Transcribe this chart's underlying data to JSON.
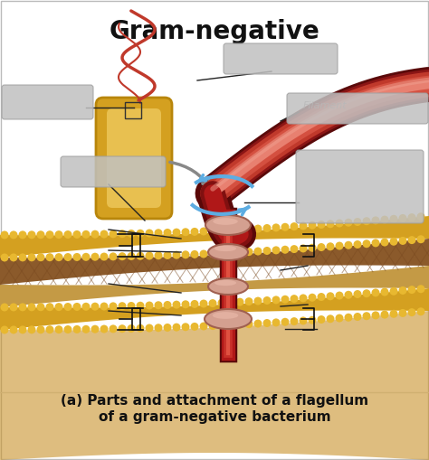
{
  "title": "Gram-negative",
  "caption_line1": "(a) Parts and attachment of a flagellum",
  "caption_line2": "of a gram-negative bacterium",
  "bg_color": "#ffffff",
  "title_fontsize": 20,
  "caption_fontsize": 11,
  "gold": "#d4a020",
  "gold_bead": "#e8b830",
  "brown": "#8b5a2b",
  "periplasm": "#c49a45",
  "rod_dark": "#8b1a1a",
  "rod_mid": "#c0392b",
  "rod_light": "#e8726a",
  "filament_dark": "#7b1a0a",
  "filament_mid": "#b83020",
  "filament_light": "#d45040",
  "filament_highlight": "#e88878",
  "hook_dark": "#922010",
  "basal_disk": "#d4a090",
  "basal_disk_edge": "#a06050",
  "rotation_arrow": "#5dade2",
  "gray_label": "#c0c0c0",
  "gray_label_edge": "#a0a0a0",
  "line_color": "#222222",
  "bracket_color": "#111111",
  "bact_outer": "#d4a020",
  "bact_inner": "#e8c050",
  "flagella_color": "#c0392b",
  "arrow_gray": "#888888"
}
